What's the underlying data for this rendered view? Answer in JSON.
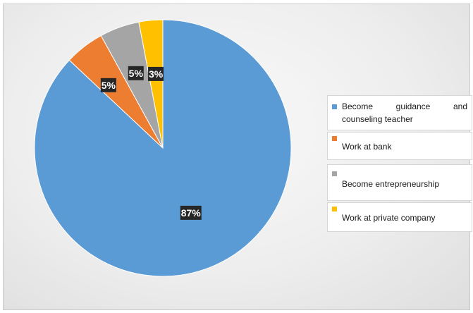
{
  "chart_data": {
    "type": "pie",
    "categories": [
      "Become guidance and counseling teacher",
      "Work at bank",
      "Become entrepreneurship",
      "Work at private company"
    ],
    "values": [
      87,
      5,
      5,
      3
    ],
    "data_labels": [
      "87%",
      "5%",
      "5%",
      "3%"
    ],
    "colors": [
      "#5B9BD5",
      "#ED7D31",
      "#A5A5A5",
      "#FFC000"
    ],
    "start_angle_deg": 0,
    "direction": "counterclockwise",
    "legend_position": "right"
  }
}
